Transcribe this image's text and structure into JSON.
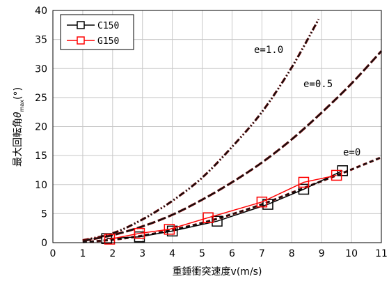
{
  "chart_data": {
    "type": "line",
    "xlabel": "重錘衝突速度v(m/s)",
    "ylabel_main": "最大回転角",
    "ylabel_symbol": "θ",
    "ylabel_sub": "max",
    "ylabel_unit": "(°)",
    "xlim": [
      0,
      11
    ],
    "ylim": [
      0,
      40
    ],
    "x_ticks": [
      "0",
      "1",
      "2",
      "3",
      "4",
      "5",
      "6",
      "7",
      "8",
      "9",
      "10",
      "11"
    ],
    "y_ticks": [
      "0",
      "5",
      "10",
      "15",
      "20",
      "25",
      "30",
      "35",
      "40"
    ],
    "grid": true,
    "legend_position": "top-left",
    "series": [
      {
        "name": "C150",
        "color": "#000000",
        "marker": "square",
        "x": [
          1.8,
          2.9,
          4.0,
          5.5,
          7.2,
          8.4,
          9.7
        ],
        "y": [
          0.7,
          1.0,
          2.0,
          3.7,
          6.6,
          9.2,
          12.4
        ]
      },
      {
        "name": "G150",
        "color": "#ff0000",
        "marker": "square",
        "x": [
          1.9,
          2.9,
          3.9,
          5.2,
          7.0,
          8.4,
          9.5
        ],
        "y": [
          0.6,
          1.6,
          2.3,
          4.3,
          7.0,
          10.4,
          11.6
        ]
      }
    ],
    "curves": [
      {
        "label": "e=1.0",
        "style": "dash-dot-dot",
        "x": [
          1.0,
          2.0,
          3.0,
          4.0,
          5.0,
          6.0,
          7.0,
          8.0,
          8.9
        ],
        "y": [
          0.4,
          1.6,
          4.0,
          7.2,
          11.2,
          16.5,
          22.5,
          30.2,
          38.5
        ]
      },
      {
        "label": "e=0.5",
        "style": "long-dash",
        "x": [
          1.0,
          2.0,
          3.0,
          4.0,
          5.0,
          6.0,
          7.0,
          8.0,
          9.0,
          10.0,
          11.0
        ],
        "y": [
          0.3,
          1.3,
          2.8,
          4.8,
          7.4,
          10.4,
          13.8,
          17.8,
          22.4,
          27.4,
          33.0
        ]
      },
      {
        "label": "e=0",
        "style": "short-dash",
        "x": [
          1.0,
          2.0,
          3.0,
          4.0,
          5.0,
          6.0,
          7.0,
          8.0,
          9.0,
          10.0,
          11.0
        ],
        "y": [
          0.1,
          0.5,
          1.2,
          2.2,
          3.4,
          4.9,
          6.6,
          8.6,
          10.6,
          12.6,
          14.7
        ]
      }
    ]
  }
}
